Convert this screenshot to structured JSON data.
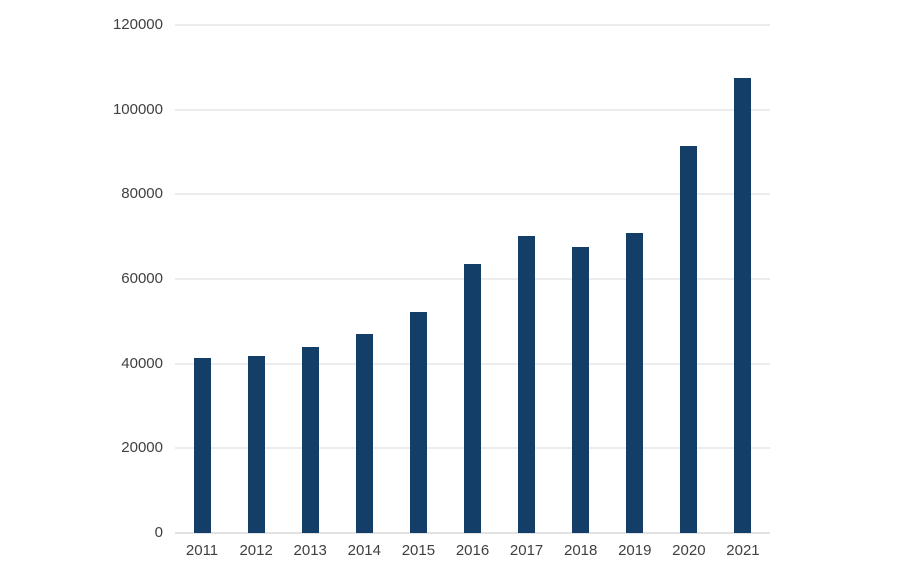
{
  "chart_data": {
    "type": "bar",
    "categories": [
      "2011",
      "2012",
      "2013",
      "2014",
      "2015",
      "2016",
      "2017",
      "2018",
      "2019",
      "2020",
      "2021"
    ],
    "values": [
      41300,
      41700,
      43900,
      47000,
      52200,
      63500,
      70200,
      67500,
      70800,
      91500,
      107600
    ],
    "xlabel": "",
    "ylabel": "",
    "ylim": [
      0,
      120000
    ],
    "y_ticks": [
      0,
      20000,
      40000,
      60000,
      80000,
      100000,
      120000
    ],
    "grid": true,
    "legend": false,
    "bar_color": "#123e68",
    "gridline_color": "#d9d9d9",
    "axis_line_color": "#c6c6c6",
    "label_color": "#404040",
    "background_color": "#ffffff"
  }
}
